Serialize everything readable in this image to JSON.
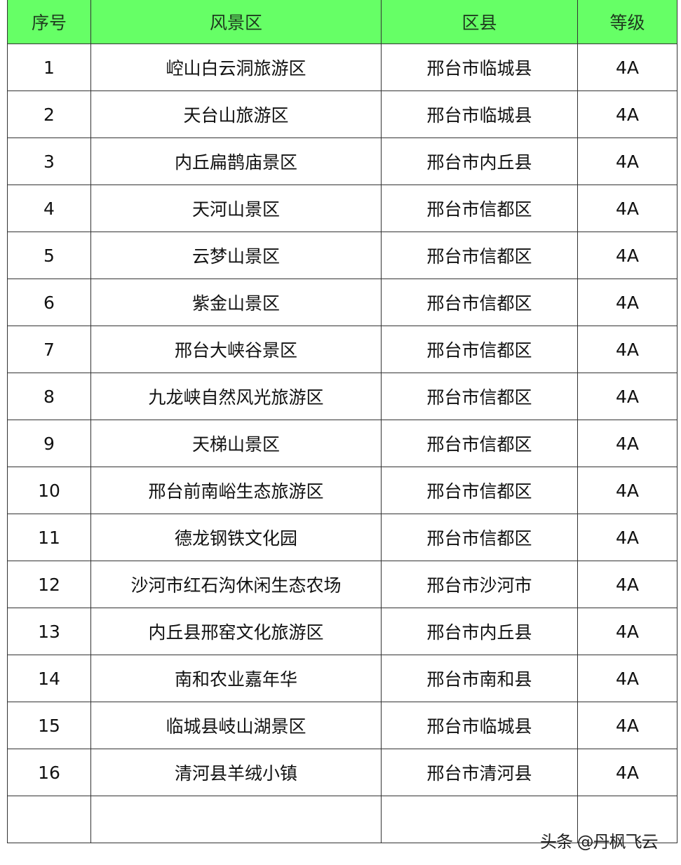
{
  "table": {
    "headers": [
      "序号",
      "风景区",
      "区县",
      "等级"
    ],
    "rows": [
      [
        "1",
        "崆山白云洞旅游区",
        "邢台市临城县",
        "4A"
      ],
      [
        "2",
        "天台山旅游区",
        "邢台市临城县",
        "4A"
      ],
      [
        "3",
        "内丘扁鹊庙景区",
        "邢台市内丘县",
        "4A"
      ],
      [
        "4",
        "天河山景区",
        "邢台市信都区",
        "4A"
      ],
      [
        "5",
        "云梦山景区",
        "邢台市信都区",
        "4A"
      ],
      [
        "6",
        "紫金山景区",
        "邢台市信都区",
        "4A"
      ],
      [
        "7",
        "邢台大峡谷景区",
        "邢台市信都区",
        "4A"
      ],
      [
        "8",
        "九龙峡自然风光旅游区",
        "邢台市信都区",
        "4A"
      ],
      [
        "9",
        "天梯山景区",
        "邢台市信都区",
        "4A"
      ],
      [
        "10",
        "邢台前南峪生态旅游区",
        "邢台市信都区",
        "4A"
      ],
      [
        "11",
        "德龙钢铁文化园",
        "邢台市信都区",
        "4A"
      ],
      [
        "12",
        "沙河市红石沟休闲生态农场",
        "邢台市沙河市",
        "4A"
      ],
      [
        "13",
        "内丘县邢窑文化旅游区",
        "邢台市内丘县",
        "4A"
      ],
      [
        "14",
        "南和农业嘉年华",
        "邢台市南和县",
        "4A"
      ],
      [
        "15",
        "临城县岐山湖景区",
        "邢台市临城县",
        "4A"
      ],
      [
        "16",
        "清河县羊绒小镇",
        "邢台市清河县",
        "4A"
      ]
    ]
  },
  "watermark": "头条 @丹枫飞云",
  "colors": {
    "header_bg": "#66ff66"
  }
}
